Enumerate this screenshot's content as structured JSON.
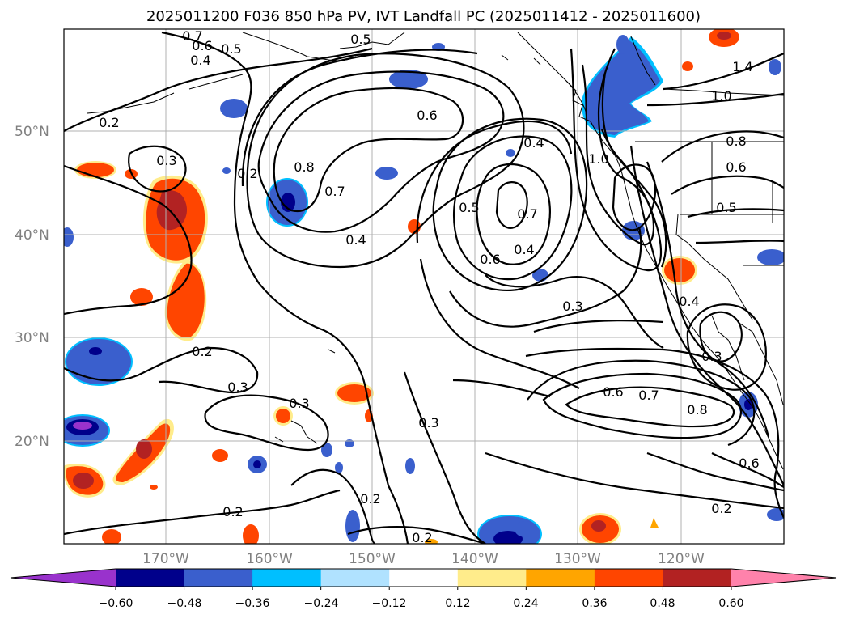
{
  "title": "2025011200 F036 850 hPa PV, IVT Landfall PC (2025011412 - 2025011600)",
  "latitude_labels": [
    "50°N",
    "40°N",
    "30°N",
    "20°N"
  ],
  "longitude_labels": [
    "170°W",
    "160°W",
    "150°W",
    "140°W",
    "130°W",
    "120°W"
  ],
  "colorbar": {
    "tick_labels": [
      "−0.60",
      "−0.48",
      "−0.36",
      "−0.24",
      "−0.12",
      "0.12",
      "0.24",
      "0.36",
      "0.48",
      "0.60"
    ],
    "bins": [
      {
        "color": "#9932cc"
      },
      {
        "color": "#00008b"
      },
      {
        "color": "#3a5fcd"
      },
      {
        "color": "#00bfff"
      },
      {
        "color": "#b0e2ff"
      },
      {
        "color": "#ffffff"
      },
      {
        "color": "#ffec8b"
      },
      {
        "color": "#ffa500"
      },
      {
        "color": "#ff4500"
      },
      {
        "color": "#b22222"
      },
      {
        "color": "#ff82ab"
      }
    ]
  },
  "contour_labels": {
    "a": "0.7",
    "b": "0.6",
    "c": "0.4",
    "d": "0.5",
    "e": "0.5",
    "f": "0.2",
    "g": "0.3",
    "h": "0.2",
    "i": "0.8",
    "j": "0.7",
    "k": "0.4",
    "l": "0.6",
    "m": "0.4",
    "n": "0.5",
    "o": "0.7",
    "p": "0.6",
    "q": "0.4",
    "r": "0.3",
    "s": "1.0",
    "t": "1.4",
    "u": "1.0",
    "v": "0.8",
    "w": "0.6",
    "x": "0.5",
    "y": "0.4",
    "z": "0.3",
    "aa": "0.2",
    "ab": "0.3",
    "ac": "0.3",
    "ad": "0.3",
    "ae": "0.6",
    "af": "0.7",
    "ag": "0.8",
    "ah": "0.6",
    "ai": "0.2",
    "aj": "0.2",
    "ak": "0.2",
    "al": "0.2"
  }
}
